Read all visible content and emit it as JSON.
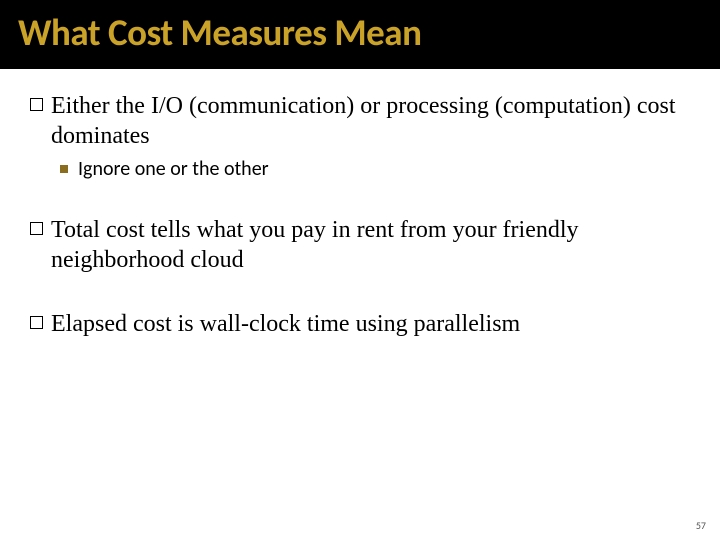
{
  "slide": {
    "title": "What Cost Measures Mean",
    "title_color": "#c9a227",
    "title_bg": "#000000",
    "title_fontsize": 37,
    "body_fontsize": 24,
    "sub_fontsize": 20,
    "sub_marker_color": "#8a6d1f",
    "bullets": [
      {
        "level": 1,
        "text": "Either the I/O (communication) or processing (computation) cost dominates",
        "children": [
          {
            "level": 2,
            "text": "Ignore one or the other"
          }
        ]
      },
      {
        "level": 1,
        "text": "Total cost tells what you pay in rent from your friendly neighborhood cloud",
        "children": []
      },
      {
        "level": 1,
        "text": "Elapsed cost is wall-clock time using parallelism",
        "children": []
      }
    ],
    "page_number": "57"
  }
}
